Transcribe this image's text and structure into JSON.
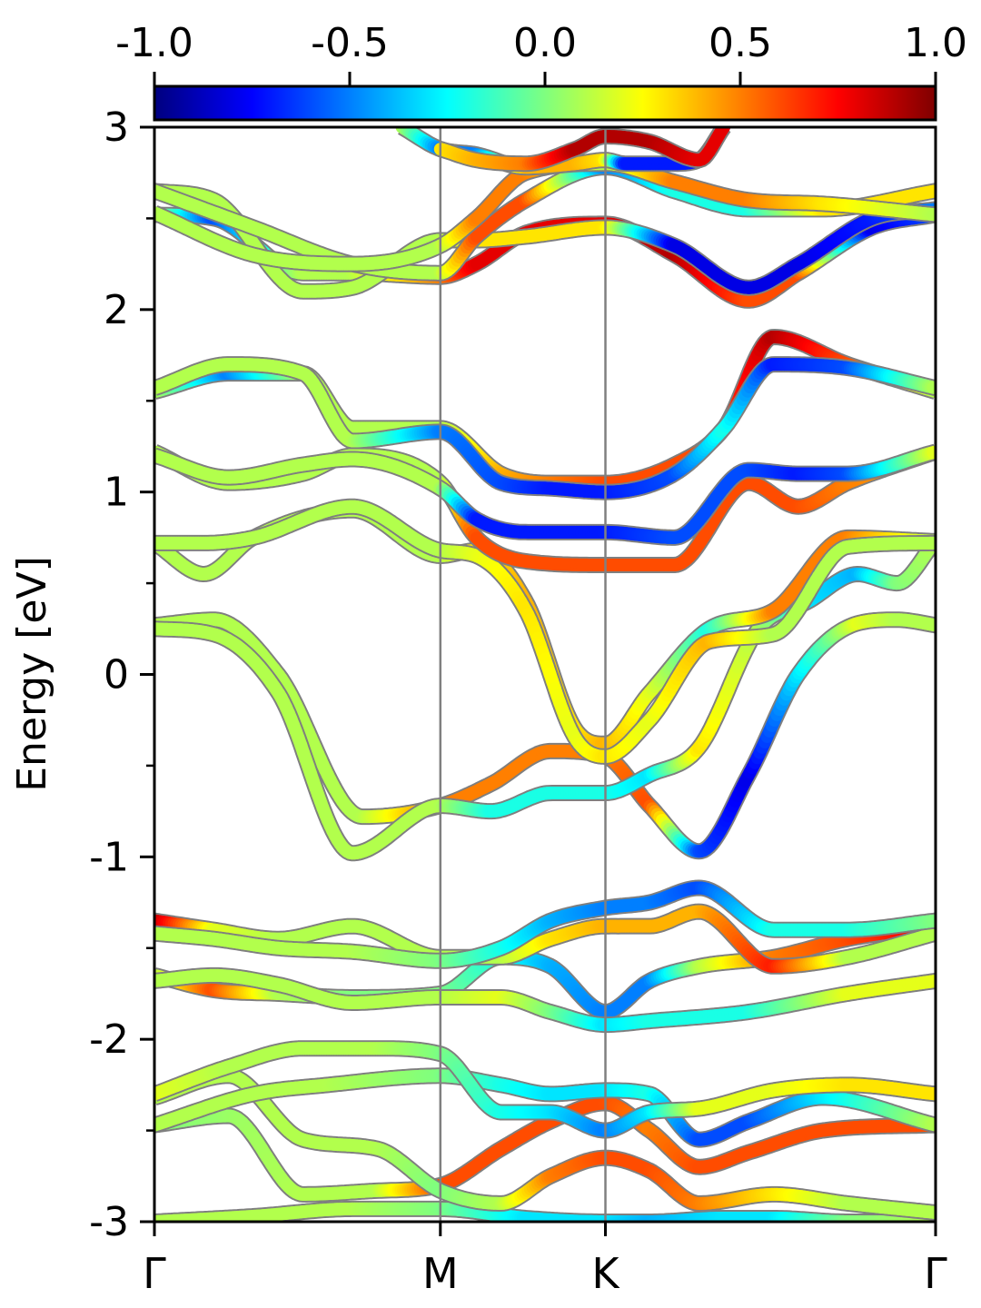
{
  "chart_data": {
    "type": "line",
    "title": "",
    "xlabel": "",
    "ylabel": "Energy [eV]",
    "ylim": [
      -3,
      3
    ],
    "y_ticks": [
      "-3",
      "-2",
      "-1",
      "0",
      "1",
      "2",
      "3"
    ],
    "y_minor_ticks": [
      -2.5,
      -1.5,
      -0.5,
      0.5,
      1.5,
      2.5
    ],
    "k_path": {
      "labels": [
        "Γ",
        "M",
        "K",
        "Γ"
      ],
      "positions": [
        0,
        0.5774,
        0.9107,
        1.5774
      ]
    },
    "vertical_lines_at": [
      "M",
      "K"
    ],
    "grid": false,
    "legend": "none",
    "color_value_range": [
      -1.0,
      1.0
    ],
    "colorbar": {
      "placement": "top",
      "colormap": "jet",
      "ticks": [
        "-1.0",
        "-0.5",
        "0.0",
        "0.5",
        "1.0"
      ],
      "colors": [
        "#00007f",
        "#0000ff",
        "#007fff",
        "#00ffff",
        "#7fff7f",
        "#ffff00",
        "#ff7f00",
        "#ff0000",
        "#7f0000"
      ]
    },
    "band_outline_color": "#7f7f7f",
    "bands": [
      {
        "k": [
          0,
          0.2,
          0.4,
          0.5774,
          0.75,
          0.9107,
          1.0,
          1.15,
          1.25,
          1.4,
          1.5774
        ],
        "e": [
          -3.0,
          -2.97,
          -2.93,
          -2.93,
          -2.98,
          -3.0,
          -3.0,
          -2.98,
          -2.98,
          -3.0,
          -3.0
        ],
        "c": [
          0.1,
          0.1,
          0.1,
          0.0,
          -0.3,
          -0.3,
          -0.4,
          -0.3,
          -0.3,
          0.0,
          0.1
        ]
      },
      {
        "k": [
          0,
          0.15,
          0.3,
          0.45,
          0.5774,
          0.7,
          0.8,
          0.9107,
          1.0,
          1.1,
          1.2,
          1.35,
          1.5774
        ],
        "e": [
          -2.47,
          -2.42,
          -2.85,
          -2.83,
          -2.8,
          -2.6,
          -2.45,
          -2.35,
          -2.5,
          -2.7,
          -2.62,
          -2.5,
          -2.47
        ],
        "c": [
          0.0,
          0.05,
          0.1,
          0.1,
          0.6,
          0.6,
          0.6,
          0.6,
          0.5,
          0.6,
          0.6,
          0.6,
          0.6
        ]
      },
      {
        "k": [
          0,
          0.15,
          0.3,
          0.45,
          0.5774,
          0.7,
          0.8,
          0.9107,
          1.0,
          1.1,
          1.25,
          1.4,
          1.5774
        ],
        "e": [
          -2.32,
          -2.2,
          -2.55,
          -2.6,
          -2.83,
          -2.9,
          -2.75,
          -2.65,
          -2.72,
          -2.9,
          -2.85,
          -2.9,
          -2.95
        ],
        "c": [
          0.1,
          0.1,
          0.1,
          0.1,
          0.0,
          0.1,
          0.5,
          0.6,
          0.6,
          0.5,
          0.3,
          0.1,
          0.1
        ]
      },
      {
        "k": [
          0,
          0.2,
          0.35,
          0.5774,
          0.7,
          0.8,
          0.9107,
          1.0,
          1.1,
          1.2,
          1.35,
          1.5774
        ],
        "e": [
          -2.47,
          -2.3,
          -2.25,
          -2.2,
          -2.25,
          -2.3,
          -2.28,
          -2.3,
          -2.55,
          -2.45,
          -2.32,
          -2.47
        ],
        "c": [
          0.1,
          0.1,
          0.1,
          0.0,
          -0.2,
          -0.3,
          -0.3,
          -0.2,
          -0.6,
          -0.6,
          -0.3,
          0.1
        ]
      },
      {
        "k": [
          0,
          0.15,
          0.3,
          0.45,
          0.5774,
          0.7,
          0.8,
          0.9107,
          1.0,
          1.1,
          1.25,
          1.4,
          1.5774
        ],
        "e": [
          -2.3,
          -2.15,
          -2.05,
          -2.05,
          -2.08,
          -2.4,
          -2.4,
          -2.5,
          -2.4,
          -2.38,
          -2.28,
          -2.25,
          -2.3
        ],
        "c": [
          0.2,
          0.1,
          0.1,
          0.1,
          0.0,
          -0.2,
          -0.3,
          -0.5,
          -0.3,
          0.2,
          0.2,
          0.3,
          0.3
        ]
      },
      {
        "k": [
          0,
          0.12,
          0.25,
          0.4,
          0.5774,
          0.7,
          0.8,
          0.9107,
          1.0,
          1.1,
          1.25,
          1.4,
          1.5774
        ],
        "e": [
          -1.65,
          -1.73,
          -1.75,
          -1.77,
          -1.75,
          -1.55,
          -1.6,
          -1.85,
          -1.68,
          -1.6,
          -1.55,
          -1.45,
          -1.38
        ],
        "c": [
          0.1,
          0.6,
          0.1,
          0.0,
          0.0,
          -0.2,
          -0.4,
          -0.5,
          -0.5,
          0.1,
          0.5,
          0.6,
          0.8
        ]
      },
      {
        "k": [
          0,
          0.12,
          0.25,
          0.4,
          0.5774,
          0.7,
          0.8,
          0.9107,
          1.0,
          1.2,
          1.4,
          1.5774
        ],
        "e": [
          -1.68,
          -1.65,
          -1.7,
          -1.8,
          -1.77,
          -1.77,
          -1.85,
          -1.92,
          -1.9,
          -1.85,
          -1.75,
          -1.68
        ],
        "c": [
          0.1,
          0.1,
          0.1,
          0.1,
          0.1,
          0.2,
          0.0,
          -0.3,
          -0.2,
          -0.2,
          0.2,
          0.2
        ]
      },
      {
        "k": [
          0,
          0.12,
          0.25,
          0.4,
          0.5774,
          0.7,
          0.8,
          0.9107,
          1.0,
          1.1,
          1.25,
          1.4,
          1.5774
        ],
        "e": [
          -1.35,
          -1.4,
          -1.45,
          -1.38,
          -1.55,
          -1.55,
          -1.45,
          -1.38,
          -1.38,
          -1.3,
          -1.6,
          -1.55,
          -1.42
        ],
        "c": [
          0.9,
          0.2,
          0.1,
          0.1,
          0.1,
          0.1,
          0.3,
          0.4,
          0.4,
          0.4,
          0.7,
          0.1,
          0.1
        ]
      },
      {
        "k": [
          0,
          0.12,
          0.25,
          0.4,
          0.5774,
          0.7,
          0.8,
          0.9107,
          1.0,
          1.1,
          1.25,
          1.4,
          1.5774
        ],
        "e": [
          -1.42,
          -1.45,
          -1.5,
          -1.52,
          -1.57,
          -1.5,
          -1.35,
          -1.28,
          -1.25,
          -1.17,
          -1.4,
          -1.4,
          -1.35
        ],
        "c": [
          0.1,
          0.1,
          0.1,
          0.1,
          0.0,
          -0.2,
          -0.4,
          -0.5,
          -0.5,
          -0.6,
          -0.2,
          -0.2,
          0.0
        ]
      },
      {
        "k": [
          0,
          0.12,
          0.25,
          0.42,
          0.5774,
          0.68,
          0.8,
          0.9107,
          1.0,
          1.1,
          1.2,
          1.3,
          1.42,
          1.5,
          1.5774
        ],
        "e": [
          0.27,
          0.3,
          0.0,
          -0.78,
          -0.72,
          -0.6,
          -0.42,
          -0.45,
          -0.72,
          -0.97,
          -0.55,
          0.0,
          0.28,
          0.3,
          0.27
        ],
        "c": [
          0.1,
          0.1,
          0.1,
          0.1,
          0.5,
          0.5,
          0.5,
          0.5,
          0.6,
          -0.6,
          -0.8,
          -0.3,
          0.2,
          0.1,
          0.1
        ]
      },
      {
        "k": [
          0,
          0.12,
          0.25,
          0.4,
          0.5774,
          0.68,
          0.8,
          0.9107,
          1.0,
          1.1,
          1.22,
          1.32,
          1.42,
          1.5,
          1.5774
        ],
        "e": [
          0.25,
          0.22,
          -0.1,
          -0.98,
          -0.72,
          -0.75,
          -0.65,
          -0.65,
          -0.55,
          -0.4,
          0.25,
          0.4,
          0.55,
          0.5,
          0.73
        ],
        "c": [
          0.1,
          0.1,
          0.1,
          0.1,
          0.1,
          -0.2,
          -0.2,
          -0.2,
          -0.3,
          0.3,
          0.1,
          -0.3,
          -0.4,
          0.0,
          0.1
        ]
      },
      {
        "k": [
          0,
          0.1,
          0.2,
          0.4,
          0.5774,
          0.65,
          0.75,
          0.85,
          0.9107,
          1.0,
          1.12,
          1.25,
          1.4,
          1.5774
        ],
        "e": [
          0.72,
          0.55,
          0.75,
          0.9,
          0.65,
          0.68,
          0.4,
          -0.3,
          -0.38,
          -0.1,
          0.25,
          0.35,
          0.75,
          0.73
        ],
        "c": [
          0.1,
          0.1,
          0.1,
          0.1,
          0.1,
          0.3,
          0.4,
          0.3,
          0.4,
          0.2,
          -0.2,
          0.5,
          0.5,
          0.1
        ]
      },
      {
        "k": [
          0,
          0.1,
          0.2,
          0.4,
          0.5774,
          0.65,
          0.75,
          0.85,
          0.9107,
          1.0,
          1.12,
          1.25,
          1.4,
          1.5774
        ],
        "e": [
          0.72,
          0.72,
          0.75,
          0.92,
          0.68,
          0.65,
          0.35,
          -0.35,
          -0.45,
          -0.25,
          0.18,
          0.22,
          0.7,
          0.72
        ],
        "c": [
          0.1,
          0.1,
          0.1,
          0.1,
          0.1,
          0.2,
          0.3,
          0.2,
          0.3,
          0.2,
          0.4,
          0.1,
          0.1,
          0.1
        ]
      },
      {
        "k": [
          0,
          0.15,
          0.3,
          0.4,
          0.5774,
          0.65,
          0.75,
          0.9107,
          1.05,
          1.2,
          1.3,
          1.4,
          1.5774
        ],
        "e": [
          1.22,
          1.05,
          1.1,
          1.2,
          1.05,
          0.75,
          0.62,
          0.6,
          0.6,
          1.05,
          0.92,
          1.05,
          1.22
        ],
        "c": [
          0.1,
          0.1,
          0.1,
          0.1,
          0.1,
          0.6,
          0.6,
          0.6,
          0.6,
          0.6,
          0.6,
          0.5,
          0.4
        ]
      },
      {
        "k": [
          0,
          0.15,
          0.3,
          0.4,
          0.5774,
          0.65,
          0.75,
          0.9107,
          1.05,
          1.2,
          1.3,
          1.4,
          1.5774
        ],
        "e": [
          1.2,
          1.08,
          1.15,
          1.18,
          1.02,
          0.85,
          0.78,
          0.78,
          0.75,
          1.12,
          1.1,
          1.1,
          1.22
        ],
        "c": [
          0.1,
          0.1,
          0.1,
          0.1,
          0.1,
          -0.7,
          -0.7,
          -0.7,
          -0.6,
          -0.6,
          -0.7,
          -0.6,
          0.2
        ]
      },
      {
        "k": [
          0,
          0.15,
          0.3,
          0.4,
          0.5774,
          0.7,
          0.8,
          0.9107,
          1.05,
          1.15,
          1.25,
          1.4,
          1.5774
        ],
        "e": [
          1.55,
          1.65,
          1.65,
          1.35,
          1.35,
          1.1,
          1.05,
          1.05,
          1.15,
          1.35,
          1.85,
          1.7,
          1.55
        ],
        "c": [
          0.1,
          -0.5,
          0.1,
          0.1,
          0.1,
          0.4,
          0.5,
          0.6,
          0.6,
          0.6,
          0.9,
          0.6,
          0.1
        ]
      },
      {
        "k": [
          0,
          0.15,
          0.3,
          0.4,
          0.5774,
          0.7,
          0.8,
          0.9107,
          1.05,
          1.15,
          1.25,
          1.4,
          1.5774
        ],
        "e": [
          1.57,
          1.7,
          1.65,
          1.28,
          1.33,
          1.05,
          1.02,
          1.0,
          1.1,
          1.35,
          1.7,
          1.68,
          1.57
        ],
        "c": [
          0.1,
          0.1,
          0.1,
          0.1,
          -0.5,
          -0.6,
          -0.7,
          -0.7,
          -0.6,
          -0.2,
          -0.7,
          -0.6,
          0.1
        ]
      },
      {
        "k": [
          0,
          0.12,
          0.3,
          0.4,
          0.5774,
          0.65,
          0.75,
          0.9107,
          1.05,
          1.2,
          1.3,
          1.45,
          1.5774
        ],
        "e": [
          2.52,
          2.5,
          2.2,
          2.2,
          2.18,
          2.25,
          2.42,
          2.47,
          2.3,
          2.05,
          2.2,
          2.45,
          2.52
        ],
        "c": [
          0.1,
          -0.6,
          0.1,
          0.1,
          0.5,
          0.8,
          0.8,
          0.8,
          0.9,
          0.6,
          0.6,
          -0.8,
          -0.6
        ]
      },
      {
        "k": [
          0,
          0.12,
          0.3,
          0.4,
          0.5774,
          0.65,
          0.75,
          0.9107,
          1.05,
          1.2,
          1.3,
          1.45,
          1.5774
        ],
        "e": [
          2.65,
          2.6,
          2.1,
          2.12,
          2.38,
          2.38,
          2.4,
          2.45,
          2.35,
          2.12,
          2.25,
          2.5,
          2.55
        ],
        "c": [
          0.1,
          0.1,
          0.1,
          0.1,
          0.1,
          0.3,
          0.3,
          0.3,
          -0.8,
          -0.8,
          -0.8,
          -0.7,
          -0.5
        ]
      },
      {
        "k": [
          0,
          0.2,
          0.4,
          0.5774,
          0.65,
          0.75,
          0.9107,
          1.05,
          1.2,
          1.35,
          1.5774
        ],
        "e": [
          2.65,
          2.45,
          2.25,
          2.2,
          2.4,
          2.6,
          2.78,
          2.65,
          2.55,
          2.55,
          2.65
        ],
        "c": [
          0.1,
          0.1,
          0.1,
          0.1,
          0.6,
          0.6,
          -0.5,
          -0.2,
          -0.2,
          0.3,
          0.3
        ]
      },
      {
        "k": [
          0,
          0.2,
          0.4,
          0.5774,
          0.65,
          0.75,
          0.9107,
          1.05,
          1.2,
          1.35,
          1.5774
        ],
        "e": [
          2.53,
          2.3,
          2.25,
          2.35,
          2.5,
          2.75,
          2.8,
          2.7,
          2.6,
          2.58,
          2.52
        ],
        "c": [
          0.1,
          0.1,
          0.1,
          0.1,
          0.5,
          0.5,
          0.1,
          0.5,
          0.5,
          0.3,
          0.1
        ]
      },
      {
        "k": [
          0.5,
          0.5774,
          0.65,
          0.75,
          0.85,
          0.9107,
          0.95,
          1.05,
          1.1,
          1.15
        ],
        "e": [
          3.0,
          2.88,
          2.85,
          2.78,
          2.8,
          2.82,
          2.8,
          2.8,
          2.82,
          3.0
        ],
        "c": [
          0.1,
          -0.5,
          -0.5,
          0.4,
          0.4,
          0.3,
          -0.7,
          -0.7,
          -0.7,
          -0.7
        ]
      },
      {
        "k": [
          0.5774,
          0.65,
          0.75,
          0.85,
          0.9107,
          1.0,
          1.1,
          1.15
        ],
        "e": [
          2.88,
          2.82,
          2.8,
          2.88,
          2.95,
          2.92,
          2.82,
          3.0
        ],
        "c": [
          0.3,
          0.4,
          0.5,
          0.9,
          0.9,
          0.9,
          0.8,
          0.8
        ]
      }
    ]
  }
}
